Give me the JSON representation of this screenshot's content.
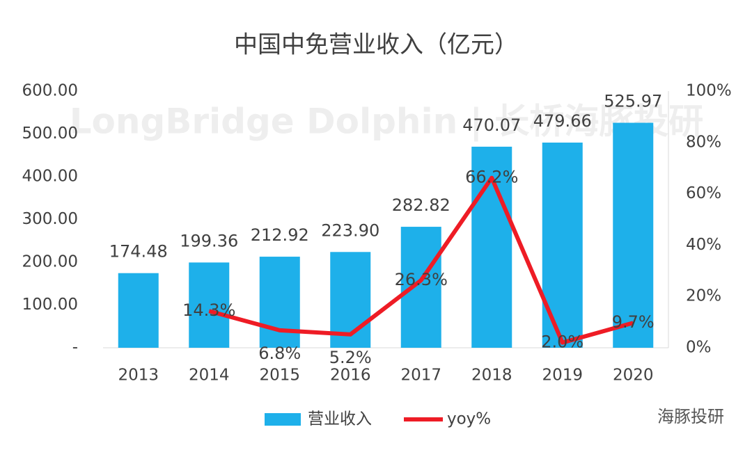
{
  "chart_data": {
    "type": "bar",
    "title": "中国中免营业收入（亿元）",
    "watermark": "LongBridge Dolphin | 长桥海豚投研",
    "logo_text": "海豚投研",
    "categories": [
      "2013",
      "2014",
      "2015",
      "2016",
      "2017",
      "2018",
      "2019",
      "2020"
    ],
    "series": [
      {
        "name": "营业收入",
        "type": "bar",
        "color": "#1eb0ea",
        "values": [
          174.48,
          199.36,
          212.92,
          223.9,
          282.82,
          470.07,
          479.66,
          525.97
        ],
        "value_labels": [
          "174.48",
          "199.36",
          "212.92",
          "223.90",
          "282.82",
          "470.07",
          "479.66",
          "525.97"
        ]
      },
      {
        "name": "yoy%",
        "type": "line",
        "axis": "y2",
        "color": "#ee1c25",
        "values": [
          null,
          14.3,
          6.8,
          5.2,
          26.3,
          66.2,
          2.0,
          9.7
        ],
        "value_labels": [
          null,
          "14.3%",
          "6.8%",
          "5.2%",
          "26.3%",
          "66.2%",
          "2.0%",
          "9.7%"
        ]
      }
    ],
    "ylim": [
      0,
      600
    ],
    "yticks": [
      {
        "value": 0,
        "label": "-"
      },
      {
        "value": 100,
        "label": "100.00"
      },
      {
        "value": 200,
        "label": "200.00"
      },
      {
        "value": 300,
        "label": "300.00"
      },
      {
        "value": 400,
        "label": "400.00"
      },
      {
        "value": 500,
        "label": "500.00"
      },
      {
        "value": 600,
        "label": "600.00"
      }
    ],
    "y2lim": [
      0,
      100
    ],
    "y2ticks": [
      {
        "value": 0,
        "label": "0%"
      },
      {
        "value": 20,
        "label": "20%"
      },
      {
        "value": 40,
        "label": "40%"
      },
      {
        "value": 60,
        "label": "60%"
      },
      {
        "value": 80,
        "label": "80%"
      },
      {
        "value": 100,
        "label": "100%"
      }
    ],
    "grid": false,
    "legend": "bottom"
  }
}
